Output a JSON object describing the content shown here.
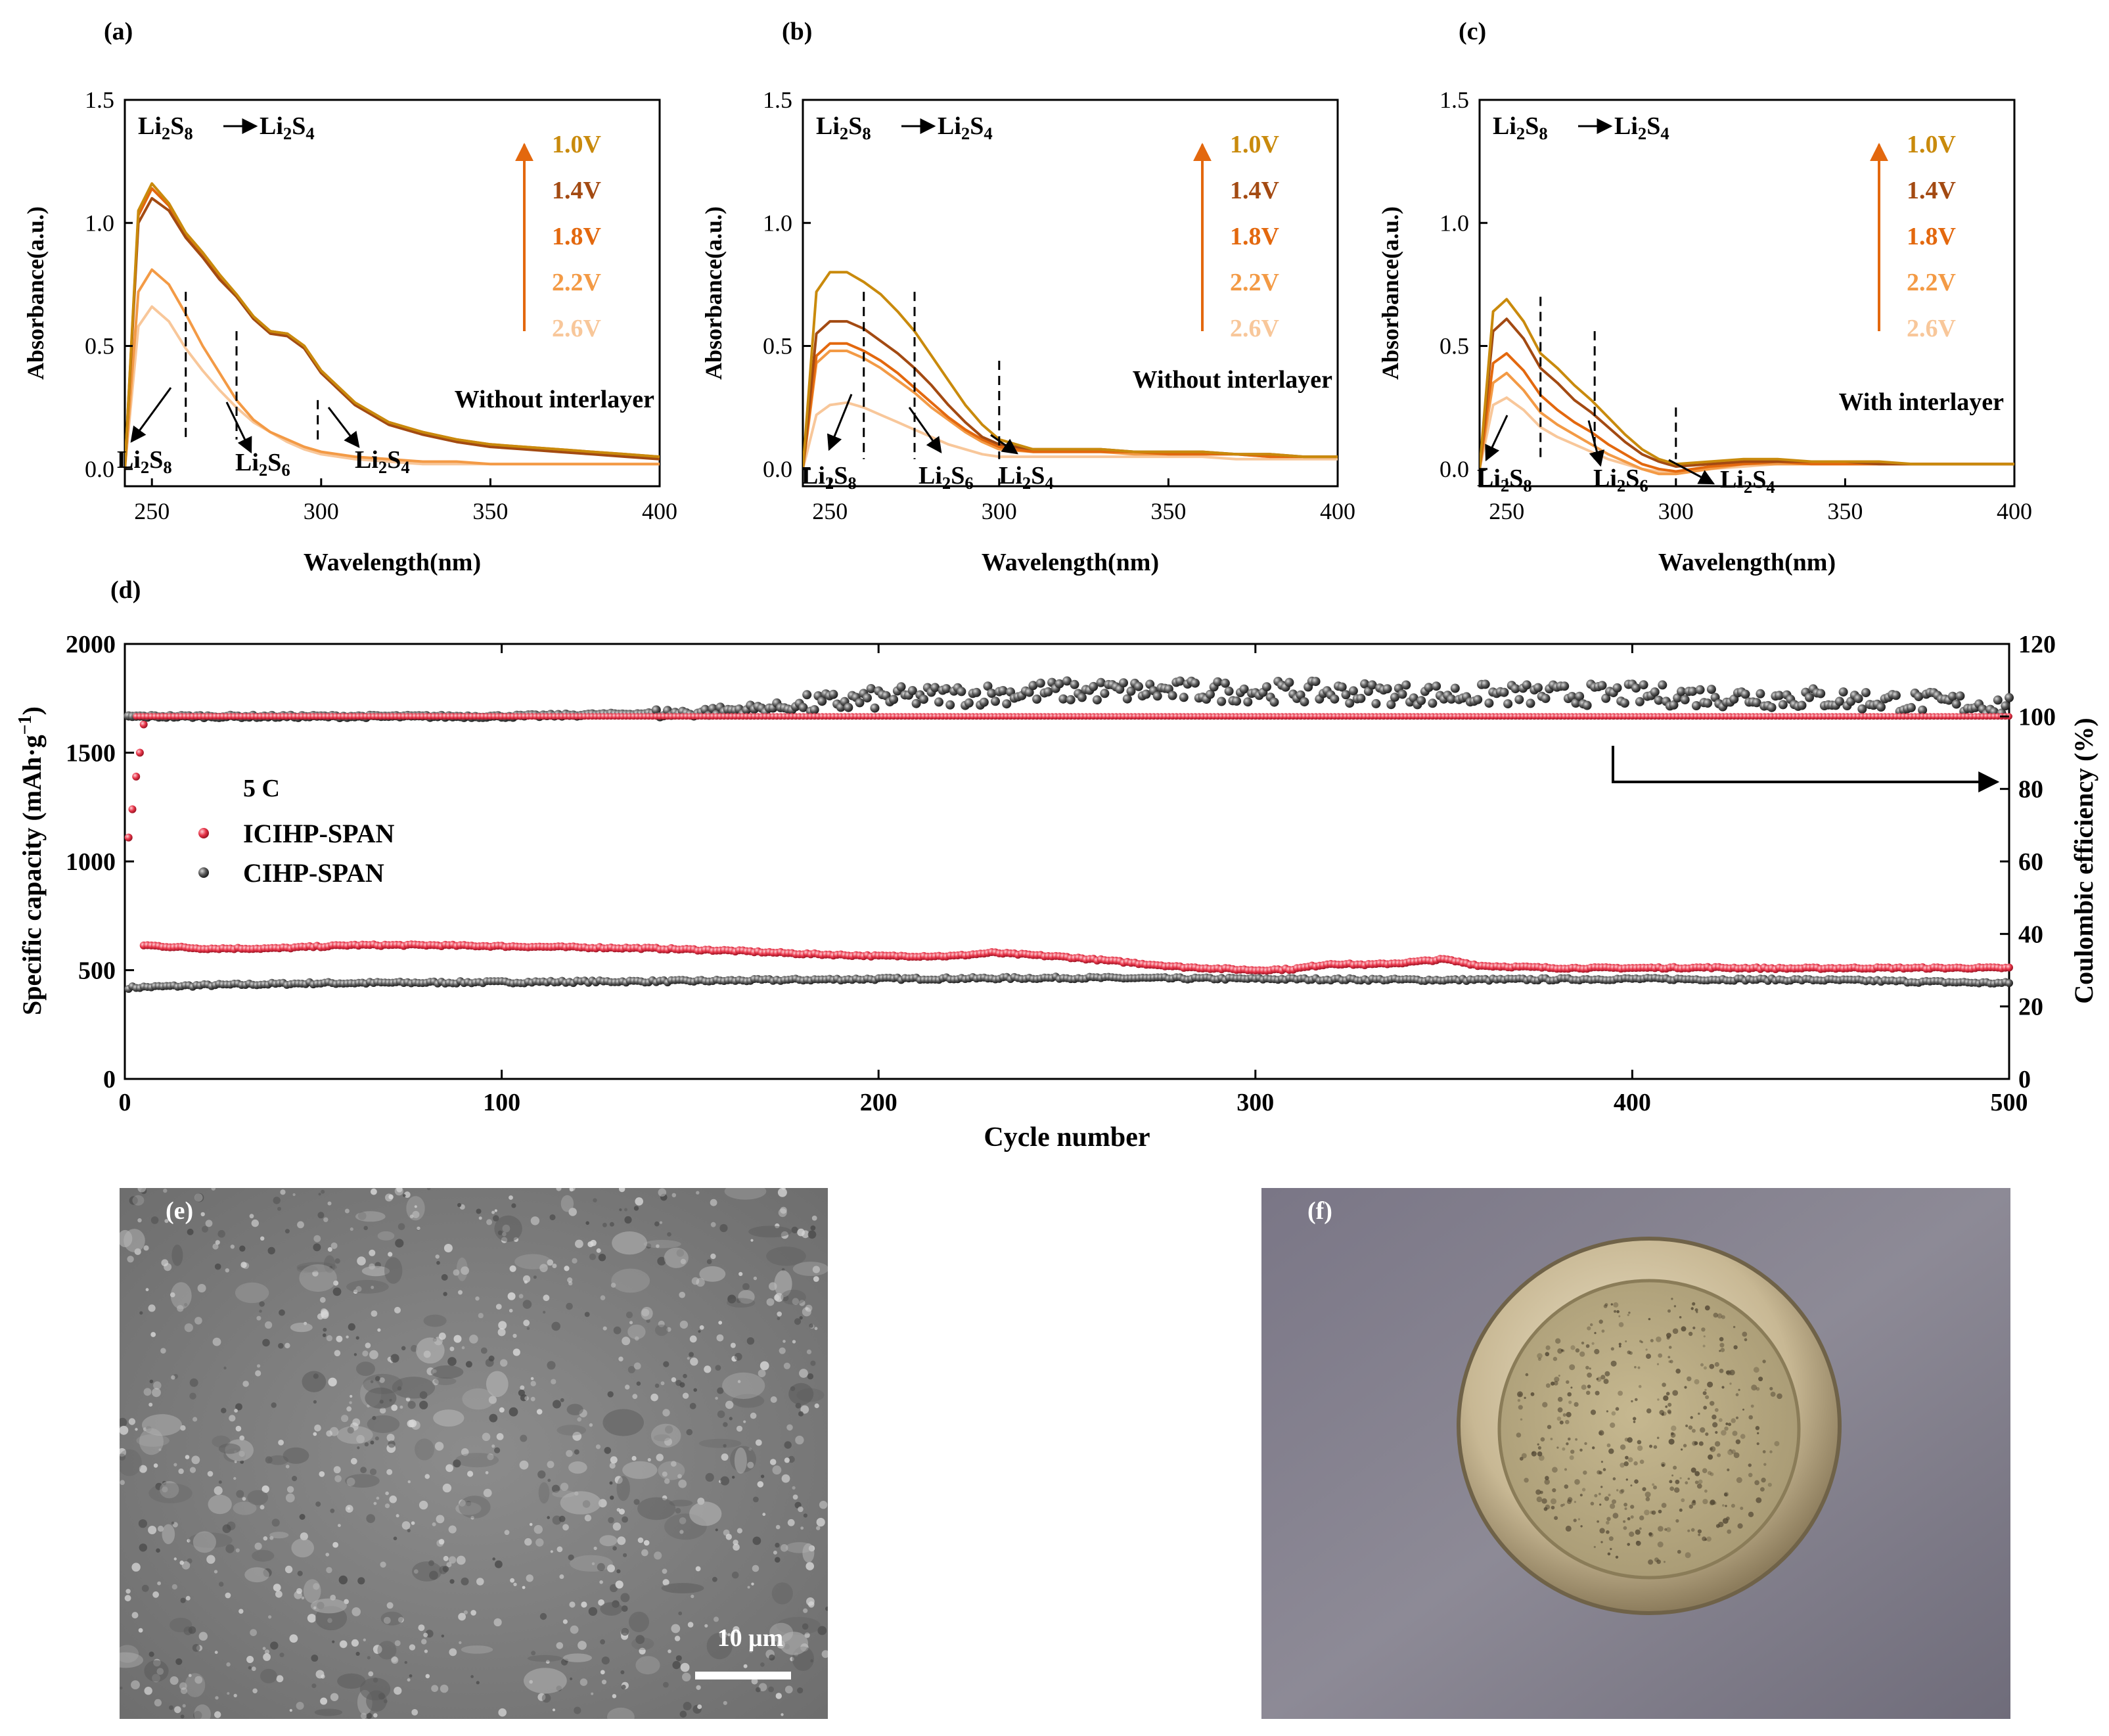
{
  "colors": {
    "v1_0": "#c98a0c",
    "v1_4": "#a34a12",
    "v1_8": "#e3680e",
    "v2_2": "#f39a45",
    "v2_6": "#f8c79a",
    "icihp": "#e8364a",
    "cihp": "#555555",
    "axis": "#000000"
  },
  "uv_panels": {
    "shared": {
      "xlabel": "Wavelength(nm)",
      "ylabel": "Absorbance(a.u.)",
      "reaction": {
        "from": "Li",
        "from_sub": "2",
        "from_s": "S",
        "from_s_sub": "8",
        "to": "Li",
        "to_sub": "2",
        "to_s": "S",
        "to_s_sub": "4"
      },
      "x_ticks": [
        "250",
        "300",
        "350",
        "400"
      ],
      "y_ticks": [
        "0.0",
        "0.5",
        "1.0",
        "1.5"
      ],
      "species": [
        {
          "base": "Li",
          "sub1": "2",
          "mid": "S",
          "sub2": "8"
        },
        {
          "base": "Li",
          "sub1": "2",
          "mid": "S",
          "sub2": "6"
        },
        {
          "base": "Li",
          "sub1": "2",
          "mid": "S",
          "sub2": "4"
        }
      ],
      "voltages": [
        "1.0V",
        "1.4V",
        "1.8V",
        "2.2V",
        "2.6V"
      ]
    },
    "a": {
      "label": "(a)",
      "condition": "Without interlayer"
    },
    "b": {
      "label": "(b)",
      "condition": "Without interlayer"
    },
    "c": {
      "label": "(c)",
      "condition": "With interlayer"
    }
  },
  "cycle_panel": {
    "label": "(d)",
    "xlabel": "Cycle number",
    "ylabel_left": "Specific capacity (mAh·g",
    "ylabel_left_sup": "−1",
    "ylabel_left_end": ")",
    "ylabel_right": "Coulombic efficiency (%)",
    "rate": "5 C",
    "legend": [
      "ICIHP-SPAN",
      "CIHP-SPAN"
    ],
    "x_ticks": [
      "0",
      "100",
      "200",
      "300",
      "400",
      "500"
    ],
    "y_left_ticks": [
      "0",
      "500",
      "1000",
      "1500",
      "2000"
    ],
    "y_right_ticks": [
      "0",
      "20",
      "40",
      "60",
      "80",
      "100",
      "120"
    ]
  },
  "images": {
    "e": {
      "label": "(e)",
      "scale_bar": "10 μm"
    },
    "f": {
      "label": "(f)"
    }
  },
  "chart_data": [
    {
      "id": "a",
      "type": "line",
      "title": "(a) Without interlayer",
      "xlabel": "Wavelength(nm)",
      "ylabel": "Absorbance(a.u.)",
      "xlim": [
        242,
        400
      ],
      "ylim": [
        -0.07,
        1.5
      ],
      "x": [
        242,
        246,
        250,
        255,
        260,
        265,
        270,
        275,
        280,
        285,
        290,
        295,
        300,
        310,
        320,
        330,
        340,
        350,
        360,
        370,
        380,
        390,
        400
      ],
      "series": [
        {
          "name": "1.0V",
          "values": [
            0.0,
            1.05,
            1.16,
            1.08,
            0.96,
            0.88,
            0.79,
            0.71,
            0.62,
            0.56,
            0.55,
            0.5,
            0.4,
            0.27,
            0.19,
            0.15,
            0.12,
            0.1,
            0.09,
            0.08,
            0.07,
            0.06,
            0.05
          ]
        },
        {
          "name": "1.4V",
          "values": [
            0.0,
            1.0,
            1.1,
            1.05,
            0.94,
            0.86,
            0.77,
            0.7,
            0.61,
            0.55,
            0.54,
            0.49,
            0.39,
            0.26,
            0.18,
            0.14,
            0.11,
            0.09,
            0.08,
            0.07,
            0.06,
            0.05,
            0.04
          ]
        },
        {
          "name": "1.8V",
          "values": [
            0.0,
            1.03,
            1.14,
            1.07,
            0.95,
            0.87,
            0.78,
            0.7,
            0.62,
            0.56,
            0.55,
            0.5,
            0.4,
            0.27,
            0.19,
            0.15,
            0.12,
            0.1,
            0.09,
            0.08,
            0.07,
            0.06,
            0.05
          ]
        },
        {
          "name": "2.2V",
          "values": [
            0.0,
            0.72,
            0.81,
            0.75,
            0.63,
            0.5,
            0.39,
            0.28,
            0.2,
            0.15,
            0.12,
            0.09,
            0.07,
            0.05,
            0.04,
            0.03,
            0.03,
            0.02,
            0.02,
            0.02,
            0.02,
            0.02,
            0.02
          ]
        },
        {
          "name": "2.6V",
          "values": [
            0.0,
            0.58,
            0.66,
            0.6,
            0.49,
            0.4,
            0.32,
            0.25,
            0.19,
            0.15,
            0.11,
            0.08,
            0.06,
            0.04,
            0.03,
            0.02,
            0.02,
            0.02,
            0.02,
            0.02,
            0.02,
            0.02,
            0.02
          ]
        }
      ]
    },
    {
      "id": "b",
      "type": "line",
      "title": "(b) Without interlayer",
      "xlabel": "Wavelength(nm)",
      "ylabel": "Absorbance(a.u.)",
      "xlim": [
        242,
        400
      ],
      "ylim": [
        -0.07,
        1.5
      ],
      "x": [
        242,
        246,
        250,
        255,
        260,
        265,
        270,
        275,
        280,
        285,
        290,
        295,
        300,
        310,
        320,
        330,
        340,
        350,
        360,
        370,
        380,
        390,
        400
      ],
      "series": [
        {
          "name": "1.0V",
          "values": [
            0.0,
            0.72,
            0.8,
            0.8,
            0.76,
            0.71,
            0.64,
            0.56,
            0.46,
            0.36,
            0.26,
            0.18,
            0.12,
            0.08,
            0.08,
            0.08,
            0.07,
            0.07,
            0.07,
            0.06,
            0.06,
            0.05,
            0.05
          ]
        },
        {
          "name": "1.4V",
          "values": [
            0.0,
            0.55,
            0.6,
            0.6,
            0.57,
            0.52,
            0.47,
            0.41,
            0.34,
            0.26,
            0.19,
            0.13,
            0.1,
            0.08,
            0.08,
            0.08,
            0.07,
            0.07,
            0.07,
            0.06,
            0.06,
            0.05,
            0.05
          ]
        },
        {
          "name": "1.8V",
          "values": [
            0.0,
            0.46,
            0.51,
            0.51,
            0.48,
            0.44,
            0.39,
            0.33,
            0.27,
            0.21,
            0.16,
            0.12,
            0.09,
            0.07,
            0.07,
            0.07,
            0.07,
            0.06,
            0.06,
            0.06,
            0.05,
            0.05,
            0.05
          ]
        },
        {
          "name": "2.2V",
          "values": [
            0.0,
            0.43,
            0.48,
            0.48,
            0.45,
            0.41,
            0.36,
            0.31,
            0.25,
            0.2,
            0.15,
            0.11,
            0.08,
            0.07,
            0.07,
            0.07,
            0.06,
            0.06,
            0.06,
            0.06,
            0.05,
            0.05,
            0.05
          ]
        },
        {
          "name": "2.6V",
          "values": [
            0.0,
            0.22,
            0.26,
            0.27,
            0.25,
            0.22,
            0.19,
            0.16,
            0.13,
            0.1,
            0.08,
            0.06,
            0.05,
            0.05,
            0.05,
            0.05,
            0.05,
            0.05,
            0.05,
            0.04,
            0.04,
            0.04,
            0.04
          ]
        }
      ]
    },
    {
      "id": "c",
      "type": "line",
      "title": "(c) With interlayer",
      "xlabel": "Wavelength(nm)",
      "ylabel": "Absorbance(a.u.)",
      "xlim": [
        242,
        400
      ],
      "ylim": [
        -0.07,
        1.5
      ],
      "x": [
        242,
        246,
        250,
        255,
        260,
        265,
        270,
        275,
        280,
        285,
        290,
        295,
        300,
        310,
        320,
        330,
        340,
        350,
        360,
        370,
        380,
        390,
        400
      ],
      "series": [
        {
          "name": "1.0V",
          "values": [
            0.0,
            0.64,
            0.69,
            0.6,
            0.47,
            0.41,
            0.34,
            0.28,
            0.21,
            0.14,
            0.08,
            0.04,
            0.02,
            0.03,
            0.04,
            0.04,
            0.03,
            0.03,
            0.03,
            0.02,
            0.02,
            0.02,
            0.02
          ]
        },
        {
          "name": "1.4V",
          "values": [
            0.0,
            0.56,
            0.61,
            0.53,
            0.41,
            0.35,
            0.28,
            0.23,
            0.17,
            0.11,
            0.06,
            0.03,
            0.01,
            0.02,
            0.03,
            0.03,
            0.03,
            0.03,
            0.02,
            0.02,
            0.02,
            0.02,
            0.02
          ]
        },
        {
          "name": "1.8V",
          "values": [
            0.0,
            0.43,
            0.47,
            0.4,
            0.3,
            0.24,
            0.19,
            0.15,
            0.1,
            0.06,
            0.02,
            0.0,
            -0.01,
            0.01,
            0.02,
            0.03,
            0.02,
            0.02,
            0.02,
            0.02,
            0.02,
            0.02,
            0.02
          ]
        },
        {
          "name": "2.2V",
          "values": [
            0.0,
            0.35,
            0.39,
            0.32,
            0.23,
            0.18,
            0.14,
            0.1,
            0.06,
            0.03,
            0.0,
            -0.02,
            -0.02,
            0.0,
            0.02,
            0.02,
            0.02,
            0.02,
            0.02,
            0.02,
            0.02,
            0.02,
            0.02
          ]
        },
        {
          "name": "2.6V",
          "values": [
            0.0,
            0.26,
            0.29,
            0.24,
            0.17,
            0.13,
            0.1,
            0.07,
            0.04,
            0.02,
            0.0,
            -0.01,
            -0.02,
            0.0,
            0.01,
            0.02,
            0.02,
            0.02,
            0.02,
            0.02,
            0.02,
            0.02,
            0.02
          ]
        }
      ]
    },
    {
      "id": "d",
      "type": "scatter",
      "title": "(d) 5 C cycling",
      "xlabel": "Cycle number",
      "ylabel": "Specific capacity (mAh·g−1)",
      "ylabel_right": "Coulombic efficiency (%)",
      "xlim": [
        0,
        500
      ],
      "ylim": [
        0,
        2000
      ],
      "ylim_right": [
        0,
        120
      ],
      "series": [
        {
          "name": "ICIHP-SPAN capacity",
          "axis": "left",
          "points_x": [
            1,
            2,
            3,
            4,
            5
          ],
          "points_y": [
            1110,
            1240,
            1390,
            1500,
            1630
          ],
          "x": [
            5,
            20,
            40,
            60,
            80,
            100,
            120,
            140,
            160,
            180,
            200,
            220,
            230,
            250,
            260,
            280,
            300,
            310,
            320,
            330,
            340,
            350,
            360,
            380,
            400,
            420,
            440,
            460,
            480,
            500
          ],
          "values": [
            615,
            600,
            600,
            615,
            615,
            610,
            605,
            600,
            590,
            575,
            565,
            565,
            580,
            560,
            545,
            515,
            500,
            505,
            530,
            525,
            535,
            550,
            520,
            510,
            510,
            512,
            508,
            510,
            510,
            510
          ]
        },
        {
          "name": "CIHP-SPAN capacity",
          "axis": "left",
          "x": [
            1,
            20,
            50,
            100,
            150,
            200,
            250,
            300,
            350,
            400,
            450,
            500
          ],
          "values": [
            420,
            430,
            440,
            445,
            450,
            460,
            465,
            460,
            455,
            460,
            455,
            440
          ]
        },
        {
          "name": "ICIHP-SPAN coulombic efficiency",
          "axis": "right",
          "x": [
            0,
            100,
            200,
            300,
            400,
            500
          ],
          "values": [
            100,
            100,
            100,
            100,
            100,
            100
          ]
        },
        {
          "name": "CIHP-SPAN coulombic efficiency",
          "axis": "right",
          "x": [
            0,
            50,
            100,
            150,
            180,
            200,
            250,
            300,
            350,
            400,
            450,
            500
          ],
          "values": [
            100,
            100,
            100,
            101,
            103,
            105,
            107,
            107,
            106,
            106,
            105,
            103
          ],
          "scatter_band": [
            0,
            2.5
          ]
        }
      ]
    }
  ]
}
